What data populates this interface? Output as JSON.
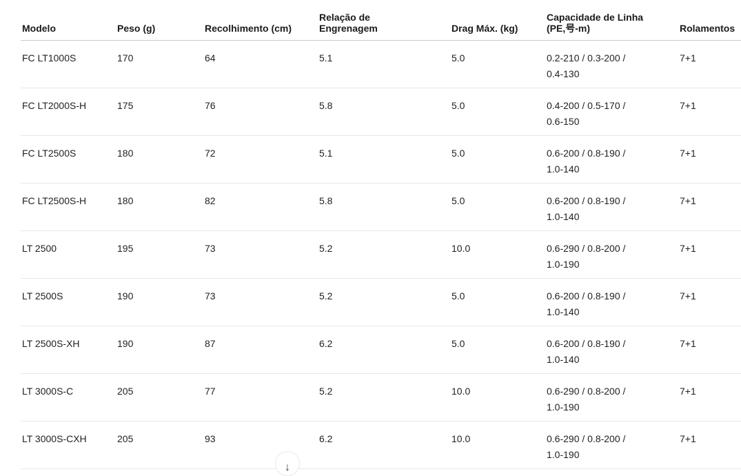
{
  "colors": {
    "background": "#ffffff",
    "text": "#201f1e",
    "header_text": "#1b1a19",
    "header_divider": "#c9c9c9",
    "row_divider": "#e7e7e7"
  },
  "table": {
    "columns": [
      {
        "id": "modelo",
        "lines": [
          "Modelo"
        ]
      },
      {
        "id": "peso",
        "lines": [
          "Peso (g)"
        ]
      },
      {
        "id": "recolhimento",
        "lines": [
          "Recolhimento (cm)"
        ]
      },
      {
        "id": "relacao-engrenagem",
        "lines": [
          "Relação de",
          "Engrenagem"
        ]
      },
      {
        "id": "drag-max",
        "lines": [
          "Drag Máx. (kg)"
        ]
      },
      {
        "id": "capacidade-linha",
        "lines": [
          "Capacidade de Linha",
          "(PE,号-m)"
        ]
      },
      {
        "id": "rolamentos",
        "lines": [
          "Rolamentos"
        ]
      }
    ],
    "rows": [
      {
        "model": "FC LT1000S",
        "weight": "170",
        "retrieve": "64",
        "gear": "5.1",
        "drag": "5.0",
        "capacity": [
          "0.2-210 / 0.3-200 /",
          "0.4-130"
        ],
        "bearings": "7+1"
      },
      {
        "model": "FC LT2000S-H",
        "weight": "175",
        "retrieve": "76",
        "gear": "5.8",
        "drag": "5.0",
        "capacity": [
          "0.4-200 / 0.5-170 /",
          "0.6-150"
        ],
        "bearings": "7+1"
      },
      {
        "model": "FC LT2500S",
        "weight": "180",
        "retrieve": "72",
        "gear": "5.1",
        "drag": "5.0",
        "capacity": [
          "0.6-200 / 0.8-190 /",
          "1.0-140"
        ],
        "bearings": "7+1"
      },
      {
        "model": "FC LT2500S-H",
        "weight": "180",
        "retrieve": "82",
        "gear": "5.8",
        "drag": "5.0",
        "capacity": [
          "0.6-200 / 0.8-190 /",
          "1.0-140"
        ],
        "bearings": "7+1"
      },
      {
        "model": "LT 2500",
        "weight": "195",
        "retrieve": "73",
        "gear": "5.2",
        "drag": "10.0",
        "capacity": [
          "0.6-290 / 0.8-200 /",
          "1.0-190"
        ],
        "bearings": "7+1"
      },
      {
        "model": "LT 2500S",
        "weight": "190",
        "retrieve": "73",
        "gear": "5.2",
        "drag": "5.0",
        "capacity": [
          "0.6-200 / 0.8-190 /",
          "1.0-140"
        ],
        "bearings": "7+1"
      },
      {
        "model": "LT 2500S-XH",
        "weight": "190",
        "retrieve": "87",
        "gear": "6.2",
        "drag": "5.0",
        "capacity": [
          "0.6-200 / 0.8-190 /",
          "1.0-140"
        ],
        "bearings": "7+1"
      },
      {
        "model": "LT 3000S-C",
        "weight": "205",
        "retrieve": "77",
        "gear": "5.2",
        "drag": "10.0",
        "capacity": [
          "0.6-290 / 0.8-200 /",
          "1.0-190"
        ],
        "bearings": "7+1"
      },
      {
        "model": "LT 3000S-CXH",
        "weight": "205",
        "retrieve": "93",
        "gear": "6.2",
        "drag": "10.0",
        "capacity": [
          "0.6-290 / 0.8-200 /",
          "1.0-190"
        ],
        "bearings": "7+1"
      }
    ]
  },
  "load_more": {
    "icon_glyph": "↓"
  }
}
